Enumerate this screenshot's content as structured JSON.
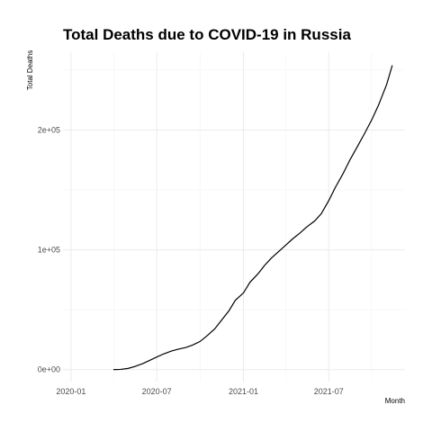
{
  "chart_data": {
    "type": "line",
    "title": "Total Deaths due to COVID-19 in Russia",
    "xlabel": "Month",
    "ylabel": "Total Deaths",
    "x_ticks": [
      "2020-01",
      "2020-07",
      "2021-01",
      "2021-07"
    ],
    "y_ticks": [
      "0e+00",
      "1e+05",
      "2e+05"
    ],
    "xlim": [
      "2019-12-15",
      "2021-12-10"
    ],
    "ylim": [
      -10000,
      265000
    ],
    "grid": true,
    "legend": "none",
    "series": [
      {
        "color": "#000000",
        "x": [
          "2020-03-31",
          "2020-04-15",
          "2020-05-01",
          "2020-05-15",
          "2020-06-01",
          "2020-06-15",
          "2020-07-01",
          "2020-07-15",
          "2020-08-01",
          "2020-08-15",
          "2020-09-01",
          "2020-09-15",
          "2020-10-01",
          "2020-10-15",
          "2020-11-01",
          "2020-11-15",
          "2020-12-01",
          "2020-12-15",
          "2021-01-01",
          "2021-01-15",
          "2021-02-01",
          "2021-02-15",
          "2021-03-01",
          "2021-03-15",
          "2021-04-01",
          "2021-04-15",
          "2021-05-01",
          "2021-05-15",
          "2021-06-01",
          "2021-06-15",
          "2021-07-01",
          "2021-07-15",
          "2021-08-01",
          "2021-08-15",
          "2021-09-01",
          "2021-09-15",
          "2021-10-01",
          "2021-10-15",
          "2021-11-01",
          "2021-11-13"
        ],
        "y": [
          0,
          200,
          1000,
          2500,
          5000,
          7500,
          10500,
          13000,
          15500,
          17000,
          18500,
          20500,
          23500,
          28000,
          34000,
          41000,
          49000,
          58000,
          64000,
          73000,
          80000,
          87000,
          93000,
          98000,
          104000,
          109000,
          114000,
          119000,
          124000,
          130000,
          141000,
          152000,
          164000,
          175000,
          187000,
          197000,
          209000,
          221000,
          238000,
          254000
        ]
      }
    ]
  }
}
